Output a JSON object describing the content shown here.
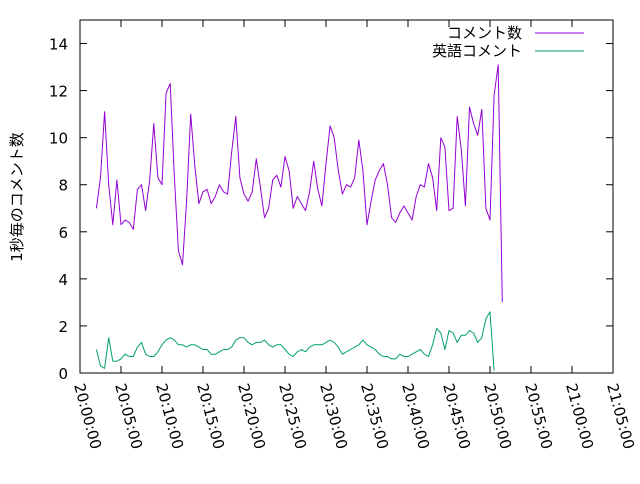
{
  "chart_data": {
    "type": "line",
    "title": "",
    "xlabel": "",
    "ylabel": "1秒毎のコメント数",
    "xlim": [
      "20:00:00",
      "21:05:00"
    ],
    "ylim": [
      0,
      15
    ],
    "x_ticks": [
      "20:00:00",
      "20:05:00",
      "20:10:00",
      "20:15:00",
      "20:20:00",
      "20:25:00",
      "20:30:00",
      "20:35:00",
      "20:40:00",
      "20:45:00",
      "20:50:00",
      "20:55:00",
      "21:00:00",
      "21:05:00"
    ],
    "y_ticks": [
      "0",
      "2",
      "4",
      "6",
      "8",
      "10",
      "12",
      "14"
    ],
    "grid": false,
    "legend_position": "top-right",
    "series": [
      {
        "name": "コメント数",
        "color": "#9400d3",
        "points": [
          [
            "20:02:00",
            7.0
          ],
          [
            "20:02:30",
            8.3
          ],
          [
            "20:03:00",
            11.1
          ],
          [
            "20:03:30",
            8.0
          ],
          [
            "20:04:00",
            6.3
          ],
          [
            "20:04:30",
            8.2
          ],
          [
            "20:05:00",
            6.3
          ],
          [
            "20:05:30",
            6.5
          ],
          [
            "20:06:00",
            6.4
          ],
          [
            "20:06:30",
            6.1
          ],
          [
            "20:07:00",
            7.8
          ],
          [
            "20:07:30",
            8.0
          ],
          [
            "20:08:00",
            6.9
          ],
          [
            "20:08:30",
            8.2
          ],
          [
            "20:09:00",
            10.6
          ],
          [
            "20:09:30",
            8.3
          ],
          [
            "20:10:00",
            8.0
          ],
          [
            "20:10:30",
            11.9
          ],
          [
            "20:11:00",
            12.3
          ],
          [
            "20:11:30",
            8.4
          ],
          [
            "20:12:00",
            5.2
          ],
          [
            "20:12:30",
            4.6
          ],
          [
            "20:13:00",
            7.3
          ],
          [
            "20:13:30",
            11.0
          ],
          [
            "20:14:00",
            8.8
          ],
          [
            "20:14:30",
            7.2
          ],
          [
            "20:15:00",
            7.7
          ],
          [
            "20:15:30",
            7.8
          ],
          [
            "20:16:00",
            7.2
          ],
          [
            "20:16:30",
            7.5
          ],
          [
            "20:17:00",
            8.0
          ],
          [
            "20:17:30",
            7.7
          ],
          [
            "20:18:00",
            7.6
          ],
          [
            "20:18:30",
            9.4
          ],
          [
            "20:19:00",
            10.9
          ],
          [
            "20:19:30",
            8.3
          ],
          [
            "20:20:00",
            7.6
          ],
          [
            "20:20:30",
            7.3
          ],
          [
            "20:21:00",
            7.7
          ],
          [
            "20:21:30",
            9.1
          ],
          [
            "20:22:00",
            7.9
          ],
          [
            "20:22:30",
            6.6
          ],
          [
            "20:23:00",
            7.0
          ],
          [
            "20:23:30",
            8.2
          ],
          [
            "20:24:00",
            8.4
          ],
          [
            "20:24:30",
            7.9
          ],
          [
            "20:25:00",
            9.2
          ],
          [
            "20:25:30",
            8.6
          ],
          [
            "20:26:00",
            7.0
          ],
          [
            "20:26:30",
            7.5
          ],
          [
            "20:27:00",
            7.2
          ],
          [
            "20:27:30",
            6.9
          ],
          [
            "20:28:00",
            7.7
          ],
          [
            "20:28:30",
            9.0
          ],
          [
            "20:29:00",
            7.8
          ],
          [
            "20:29:30",
            7.1
          ],
          [
            "20:30:00",
            8.9
          ],
          [
            "20:30:30",
            10.5
          ],
          [
            "20:31:00",
            10.0
          ],
          [
            "20:31:30",
            8.6
          ],
          [
            "20:32:00",
            7.6
          ],
          [
            "20:32:30",
            8.0
          ],
          [
            "20:33:00",
            7.9
          ],
          [
            "20:33:30",
            8.3
          ],
          [
            "20:34:00",
            9.9
          ],
          [
            "20:34:30",
            8.6
          ],
          [
            "20:35:00",
            6.3
          ],
          [
            "20:35:30",
            7.3
          ],
          [
            "20:36:00",
            8.2
          ],
          [
            "20:36:30",
            8.6
          ],
          [
            "20:37:00",
            8.9
          ],
          [
            "20:37:30",
            8.0
          ],
          [
            "20:38:00",
            6.6
          ],
          [
            "20:38:30",
            6.4
          ],
          [
            "20:39:00",
            6.8
          ],
          [
            "20:39:30",
            7.1
          ],
          [
            "20:40:00",
            6.8
          ],
          [
            "20:40:30",
            6.5
          ],
          [
            "20:41:00",
            7.5
          ],
          [
            "20:41:30",
            8.0
          ],
          [
            "20:42:00",
            7.9
          ],
          [
            "20:42:30",
            8.9
          ],
          [
            "20:43:00",
            8.3
          ],
          [
            "20:43:30",
            6.9
          ],
          [
            "20:44:00",
            10.0
          ],
          [
            "20:44:30",
            9.6
          ],
          [
            "20:45:00",
            6.9
          ],
          [
            "20:45:30",
            7.0
          ],
          [
            "20:46:00",
            10.9
          ],
          [
            "20:46:30",
            9.5
          ],
          [
            "20:47:00",
            7.1
          ],
          [
            "20:47:30",
            11.3
          ],
          [
            "20:48:00",
            10.6
          ],
          [
            "20:48:30",
            10.1
          ],
          [
            "20:49:00",
            11.2
          ],
          [
            "20:49:30",
            7.0
          ],
          [
            "20:50:00",
            6.5
          ],
          [
            "20:50:30",
            11.8
          ],
          [
            "20:51:00",
            13.1
          ],
          [
            "20:51:30",
            3.0
          ]
        ]
      },
      {
        "name": "英語コメント",
        "color": "#009e73",
        "points": [
          [
            "20:02:00",
            1.0
          ],
          [
            "20:02:30",
            0.3
          ],
          [
            "20:03:00",
            0.2
          ],
          [
            "20:03:30",
            1.5
          ],
          [
            "20:04:00",
            0.5
          ],
          [
            "20:04:30",
            0.5
          ],
          [
            "20:05:00",
            0.6
          ],
          [
            "20:05:30",
            0.8
          ],
          [
            "20:06:00",
            0.7
          ],
          [
            "20:06:30",
            0.7
          ],
          [
            "20:07:00",
            1.1
          ],
          [
            "20:07:30",
            1.3
          ],
          [
            "20:08:00",
            0.8
          ],
          [
            "20:08:30",
            0.7
          ],
          [
            "20:09:00",
            0.7
          ],
          [
            "20:09:30",
            0.9
          ],
          [
            "20:10:00",
            1.2
          ],
          [
            "20:10:30",
            1.4
          ],
          [
            "20:11:00",
            1.5
          ],
          [
            "20:11:30",
            1.4
          ],
          [
            "20:12:00",
            1.2
          ],
          [
            "20:12:30",
            1.2
          ],
          [
            "20:13:00",
            1.1
          ],
          [
            "20:13:30",
            1.2
          ],
          [
            "20:14:00",
            1.2
          ],
          [
            "20:14:30",
            1.1
          ],
          [
            "20:15:00",
            1.0
          ],
          [
            "20:15:30",
            1.0
          ],
          [
            "20:16:00",
            0.8
          ],
          [
            "20:16:30",
            0.8
          ],
          [
            "20:17:00",
            0.9
          ],
          [
            "20:17:30",
            1.0
          ],
          [
            "20:18:00",
            1.0
          ],
          [
            "20:18:30",
            1.1
          ],
          [
            "20:19:00",
            1.4
          ],
          [
            "20:19:30",
            1.5
          ],
          [
            "20:20:00",
            1.5
          ],
          [
            "20:20:30",
            1.3
          ],
          [
            "20:21:00",
            1.2
          ],
          [
            "20:21:30",
            1.3
          ],
          [
            "20:22:00",
            1.3
          ],
          [
            "20:22:30",
            1.4
          ],
          [
            "20:23:00",
            1.2
          ],
          [
            "20:23:30",
            1.1
          ],
          [
            "20:24:00",
            1.2
          ],
          [
            "20:24:30",
            1.2
          ],
          [
            "20:25:00",
            1.0
          ],
          [
            "20:25:30",
            0.8
          ],
          [
            "20:26:00",
            0.7
          ],
          [
            "20:26:30",
            0.9
          ],
          [
            "20:27:00",
            1.0
          ],
          [
            "20:27:30",
            0.9
          ],
          [
            "20:28:00",
            1.1
          ],
          [
            "20:28:30",
            1.2
          ],
          [
            "20:29:00",
            1.2
          ],
          [
            "20:29:30",
            1.2
          ],
          [
            "20:30:00",
            1.3
          ],
          [
            "20:30:30",
            1.4
          ],
          [
            "20:31:00",
            1.3
          ],
          [
            "20:31:30",
            1.1
          ],
          [
            "20:32:00",
            0.8
          ],
          [
            "20:32:30",
            0.9
          ],
          [
            "20:33:00",
            1.0
          ],
          [
            "20:33:30",
            1.1
          ],
          [
            "20:34:00",
            1.2
          ],
          [
            "20:34:30",
            1.4
          ],
          [
            "20:35:00",
            1.2
          ],
          [
            "20:35:30",
            1.1
          ],
          [
            "20:36:00",
            1.0
          ],
          [
            "20:36:30",
            0.8
          ],
          [
            "20:37:00",
            0.7
          ],
          [
            "20:37:30",
            0.7
          ],
          [
            "20:38:00",
            0.6
          ],
          [
            "20:38:30",
            0.6
          ],
          [
            "20:39:00",
            0.8
          ],
          [
            "20:39:30",
            0.7
          ],
          [
            "20:40:00",
            0.7
          ],
          [
            "20:40:30",
            0.8
          ],
          [
            "20:41:00",
            0.9
          ],
          [
            "20:41:30",
            1.0
          ],
          [
            "20:42:00",
            0.8
          ],
          [
            "20:42:30",
            0.7
          ],
          [
            "20:43:00",
            1.2
          ],
          [
            "20:43:30",
            1.9
          ],
          [
            "20:44:00",
            1.7
          ],
          [
            "20:44:30",
            1.0
          ],
          [
            "20:45:00",
            1.8
          ],
          [
            "20:45:30",
            1.7
          ],
          [
            "20:46:00",
            1.3
          ],
          [
            "20:46:30",
            1.6
          ],
          [
            "20:47:00",
            1.6
          ],
          [
            "20:47:30",
            1.8
          ],
          [
            "20:48:00",
            1.7
          ],
          [
            "20:48:30",
            1.3
          ],
          [
            "20:49:00",
            1.5
          ],
          [
            "20:49:30",
            2.3
          ],
          [
            "20:50:00",
            2.6
          ],
          [
            "20:50:30",
            0.1
          ]
        ]
      }
    ]
  }
}
